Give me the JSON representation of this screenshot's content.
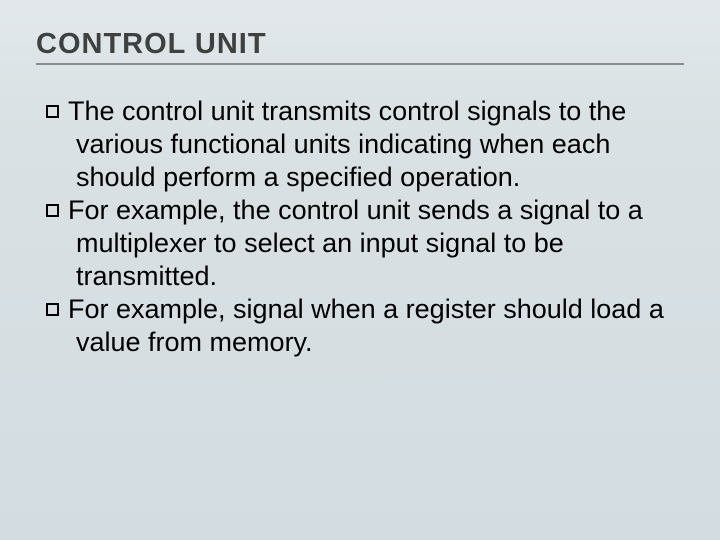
{
  "slide": {
    "title": "CONTROL UNIT",
    "title_color": "#3f4040",
    "title_fontsize": 29,
    "title_letterspacing": 1,
    "rule_color": "#8c8d8d",
    "background_gradient": [
      "#e2e8eb",
      "#dde4e7",
      "#d9e1e4",
      "#d7dfe3",
      "#d5dee2",
      "#d3dde1"
    ],
    "body_fontsize": 27,
    "body_color": "#000000",
    "bullet_marker": {
      "type": "hollow-square",
      "size": 13,
      "border_color": "#000000",
      "border_width": 2
    },
    "bullets": [
      "The control unit transmits control signals to the various functional units indicating when each should perform a specified operation.",
      "For example, the control unit sends a signal to a multiplexer to select an input signal to be transmitted.",
      "For example, signal when a register should load a value from memory."
    ]
  }
}
